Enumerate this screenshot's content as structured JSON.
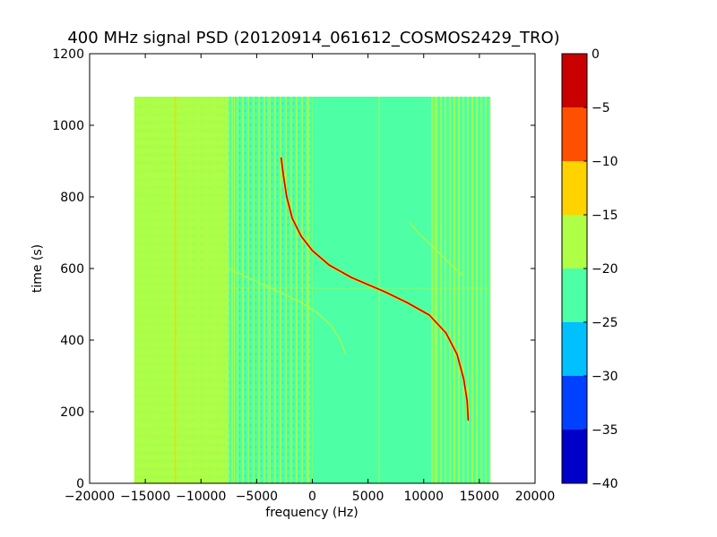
{
  "chart_data": {
    "type": "heatmap",
    "title": "400 MHz signal PSD (20120914_061612_COSMOS2429_TRO)",
    "xlabel": "frequency (Hz)",
    "ylabel": "time (s)",
    "xlim": [
      -20000,
      20000
    ],
    "ylim": [
      0,
      1200
    ],
    "xticks": [
      "−20000",
      "−15000",
      "−10000",
      "−5000",
      "0",
      "5000",
      "10000",
      "15000",
      "20000"
    ],
    "xtick_values": [
      -20000,
      -15000,
      -10000,
      -5000,
      0,
      5000,
      10000,
      15000,
      20000
    ],
    "yticks": [
      "0",
      "200",
      "400",
      "600",
      "800",
      "1000",
      "1200"
    ],
    "ytick_values": [
      0,
      200,
      400,
      600,
      800,
      1000,
      1200
    ],
    "data_extent": {
      "freq": [
        -16000,
        16000
      ],
      "time": [
        0,
        1080
      ]
    },
    "colorbar": {
      "levels": [
        -40,
        -35,
        -30,
        -25,
        -20,
        -15,
        -10,
        -5,
        0
      ],
      "tick_labels": [
        "−40",
        "−35",
        "−30",
        "−25",
        "−20",
        "−15",
        "−10",
        "−5",
        "0"
      ],
      "colors": [
        "#0000c8",
        "#0040ff",
        "#00c0ff",
        "#4dffa5",
        "#aeff46",
        "#ffd200",
        "#ff5000",
        "#c80000"
      ]
    },
    "background_regions": [
      {
        "freq": [
          -16000,
          -7500
        ],
        "level": "-20..-15"
      },
      {
        "freq": [
          -7500,
          0
        ],
        "level": "mixed -25..-15"
      },
      {
        "freq": [
          0,
          10500
        ],
        "level": "-25..-20"
      },
      {
        "freq": [
          10500,
          16000
        ],
        "level": "mixed -25..-15"
      }
    ],
    "vertical_lines": [
      {
        "freq": -12300,
        "level": "-15..-10"
      },
      {
        "freq": -7000,
        "level": "-20..-15"
      },
      {
        "freq": -4000,
        "level": "-20..-15"
      },
      {
        "freq": -300,
        "level": "-20..-15"
      },
      {
        "freq": 6000,
        "level": "-20..-15"
      },
      {
        "freq": 11000,
        "level": "-20..-15"
      }
    ],
    "horizontal_line": {
      "time": 545,
      "level": "-20..-15"
    },
    "series": [
      {
        "role": "main-doppler-track",
        "level": "-10..0",
        "points": [
          [
            -2800,
            910
          ],
          [
            -2600,
            860
          ],
          [
            -2300,
            800
          ],
          [
            -1800,
            740
          ],
          [
            -1000,
            690
          ],
          [
            0,
            650
          ],
          [
            1500,
            610
          ],
          [
            3500,
            575
          ],
          [
            5000,
            555
          ],
          [
            6500,
            535
          ],
          [
            8500,
            505
          ],
          [
            10500,
            470
          ],
          [
            12000,
            420
          ],
          [
            13000,
            360
          ],
          [
            13600,
            290
          ],
          [
            13900,
            230
          ],
          [
            14000,
            175
          ]
        ]
      },
      {
        "role": "faint-track-left",
        "level": "-20..-15",
        "points": [
          [
            -7500,
            600
          ],
          [
            -5500,
            570
          ],
          [
            -3000,
            535
          ],
          [
            -1000,
            505
          ],
          [
            500,
            475
          ],
          [
            1700,
            440
          ],
          [
            2500,
            400
          ],
          [
            3000,
            360
          ]
        ]
      },
      {
        "role": "faint-track-right",
        "level": "-20..-15",
        "points": [
          [
            8700,
            730
          ],
          [
            9500,
            700
          ],
          [
            10500,
            670
          ],
          [
            11500,
            640
          ],
          [
            12500,
            610
          ],
          [
            13500,
            580
          ]
        ]
      }
    ]
  }
}
